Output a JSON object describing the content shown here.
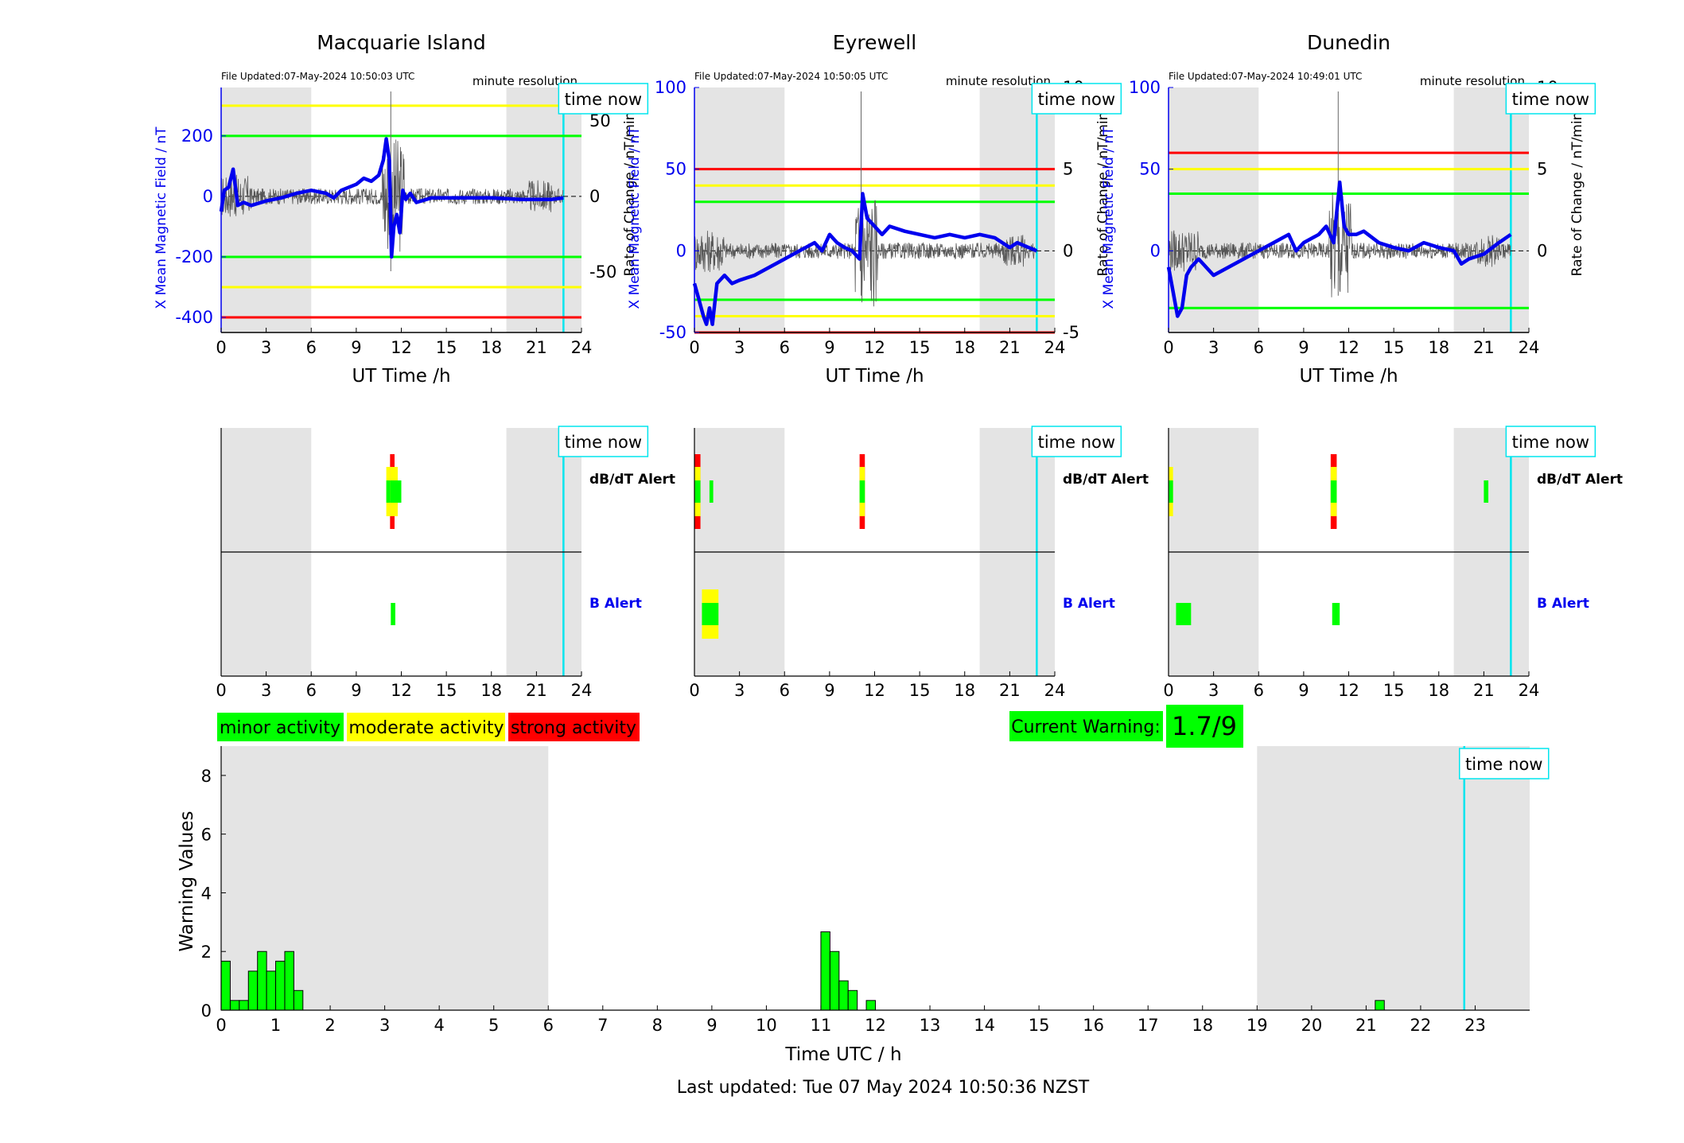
{
  "chart_data": [
    {
      "type": "line",
      "title": "Macquarie Island",
      "file_updated": "File Updated:07-May-2024 10:50:03 UTC",
      "resolution": "minute resolution",
      "time_now_label": "time now",
      "time_now_h": 22.8,
      "xlabel": "UT Time /h",
      "ylabel_left": "X Mean Magnetic Field / nT",
      "ylabel_right": "Rate of Change / nT/min",
      "xlim": [
        0,
        24
      ],
      "x_ticks": [
        0,
        3,
        6,
        9,
        12,
        15,
        18,
        21,
        24
      ],
      "ylim_left": [
        -450,
        360
      ],
      "ylim_right": [
        -90,
        72
      ],
      "y_ticks_left": [
        -400,
        -200,
        0,
        200
      ],
      "y_ticks_right": [
        -50,
        0,
        50
      ],
      "night_shading_h": [
        [
          0,
          6
        ],
        [
          19,
          24
        ]
      ],
      "threshold_lines": [
        {
          "value": 300,
          "color": "#ffff00"
        },
        {
          "value": 200,
          "color": "#00ff00"
        },
        {
          "value": -200,
          "color": "#00ff00"
        },
        {
          "value": -300,
          "color": "#ffff00"
        },
        {
          "value": -400,
          "color": "#ff0000"
        }
      ],
      "series": [
        {
          "values": [
            [
              0,
              -50
            ],
            [
              0.2,
              20
            ],
            [
              0.5,
              30
            ],
            [
              0.8,
              90
            ],
            [
              1.1,
              -30
            ],
            [
              1.5,
              -20
            ],
            [
              2,
              -30
            ],
            [
              3,
              -15
            ],
            [
              4,
              -5
            ],
            [
              5,
              10
            ],
            [
              6,
              20
            ],
            [
              7,
              10
            ],
            [
              7.5,
              -5
            ],
            [
              8,
              20
            ],
            [
              9,
              40
            ],
            [
              9.5,
              60
            ],
            [
              10,
              50
            ],
            [
              10.5,
              70
            ],
            [
              10.8,
              120
            ],
            [
              11,
              190
            ],
            [
              11.2,
              120
            ],
            [
              11.35,
              -200
            ],
            [
              11.5,
              -100
            ],
            [
              11.7,
              -60
            ],
            [
              11.9,
              -120
            ],
            [
              12.1,
              20
            ],
            [
              12.3,
              -10
            ],
            [
              12.6,
              10
            ],
            [
              13,
              -20
            ],
            [
              14,
              -5
            ],
            [
              16,
              -5
            ],
            [
              18,
              -5
            ],
            [
              20,
              -10
            ],
            [
              22,
              -10
            ],
            [
              22.8,
              -5
            ]
          ]
        }
      ]
    },
    {
      "type": "line",
      "title": "Eyrewell",
      "file_updated": "File Updated:07-May-2024 10:50:05 UTC",
      "resolution": "minute resolution",
      "time_now_label": "time now",
      "time_now_h": 22.8,
      "xlabel": "UT Time /h",
      "ylabel_left": "X Mean Magnetic Field / nT",
      "ylabel_right": "Rate of Change / nT/min",
      "xlim": [
        0,
        24
      ],
      "x_ticks": [
        0,
        3,
        6,
        9,
        12,
        15,
        18,
        21,
        24
      ],
      "ylim_left": [
        -50,
        100
      ],
      "ylim_right": [
        -5,
        10
      ],
      "y_ticks_left": [
        -50,
        0,
        50,
        100
      ],
      "y_ticks_right": [
        -5,
        0,
        5,
        10
      ],
      "night_shading_h": [
        [
          0,
          6
        ],
        [
          19,
          24
        ]
      ],
      "threshold_lines": [
        {
          "value": 50,
          "color": "#ff0000"
        },
        {
          "value": 40,
          "color": "#ffff00"
        },
        {
          "value": 30,
          "color": "#00ff00"
        },
        {
          "value": -30,
          "color": "#00ff00"
        },
        {
          "value": -40,
          "color": "#ffff00"
        },
        {
          "value": -50,
          "color": "#ff0000"
        }
      ],
      "series": [
        {
          "values": [
            [
              0,
              -20
            ],
            [
              0.3,
              -30
            ],
            [
              0.6,
              -40
            ],
            [
              0.8,
              -45
            ],
            [
              1,
              -35
            ],
            [
              1.2,
              -45
            ],
            [
              1.5,
              -20
            ],
            [
              2,
              -15
            ],
            [
              2.5,
              -20
            ],
            [
              3,
              -18
            ],
            [
              4,
              -15
            ],
            [
              5,
              -10
            ],
            [
              6,
              -5
            ],
            [
              7,
              0
            ],
            [
              8,
              5
            ],
            [
              8.5,
              0
            ],
            [
              9,
              10
            ],
            [
              9.5,
              5
            ],
            [
              10,
              2
            ],
            [
              10.5,
              0
            ],
            [
              11,
              -5
            ],
            [
              11.2,
              35
            ],
            [
              11.5,
              20
            ],
            [
              12,
              15
            ],
            [
              12.5,
              10
            ],
            [
              13,
              15
            ],
            [
              14,
              12
            ],
            [
              15,
              10
            ],
            [
              16,
              8
            ],
            [
              17,
              10
            ],
            [
              18,
              8
            ],
            [
              19,
              10
            ],
            [
              20,
              8
            ],
            [
              21,
              2
            ],
            [
              21.5,
              5
            ],
            [
              22,
              3
            ],
            [
              22.8,
              0
            ]
          ]
        }
      ]
    },
    {
      "type": "line",
      "title": "Dunedin",
      "file_updated": "File Updated:07-May-2024 10:49:01 UTC",
      "resolution": "minute resolution",
      "time_now_label": "time now",
      "time_now_h": 22.8,
      "xlabel": "UT Time /h",
      "ylabel_left": "X Mean Magnetic Field / nT",
      "ylabel_right": "Rate of Change / nT/min",
      "xlim": [
        0,
        24
      ],
      "x_ticks": [
        0,
        3,
        6,
        9,
        12,
        15,
        18,
        21,
        24
      ],
      "ylim_left": [
        -50,
        100
      ],
      "ylim_right": [
        -5,
        10
      ],
      "y_ticks_left": [
        0,
        50,
        100
      ],
      "y_ticks_right": [
        0,
        5,
        10
      ],
      "night_shading_h": [
        [
          0,
          6
        ],
        [
          19,
          24
        ]
      ],
      "threshold_lines": [
        {
          "value": 60,
          "color": "#ff0000"
        },
        {
          "value": 50,
          "color": "#ffff00"
        },
        {
          "value": 35,
          "color": "#00ff00"
        },
        {
          "value": -35,
          "color": "#00ff00"
        }
      ],
      "series": [
        {
          "values": [
            [
              0,
              -10
            ],
            [
              0.3,
              -25
            ],
            [
              0.6,
              -40
            ],
            [
              0.9,
              -35
            ],
            [
              1.2,
              -15
            ],
            [
              1.5,
              -10
            ],
            [
              2,
              -5
            ],
            [
              3,
              -15
            ],
            [
              4,
              -10
            ],
            [
              5,
              -5
            ],
            [
              6,
              0
            ],
            [
              7,
              5
            ],
            [
              8,
              10
            ],
            [
              8.5,
              0
            ],
            [
              9,
              5
            ],
            [
              10,
              10
            ],
            [
              10.5,
              15
            ],
            [
              11,
              5
            ],
            [
              11.4,
              42
            ],
            [
              11.7,
              15
            ],
            [
              12,
              10
            ],
            [
              12.5,
              10
            ],
            [
              13,
              12
            ],
            [
              14,
              5
            ],
            [
              15,
              2
            ],
            [
              16,
              0
            ],
            [
              17,
              5
            ],
            [
              18,
              2
            ],
            [
              19,
              0
            ],
            [
              19.5,
              -8
            ],
            [
              20,
              -5
            ],
            [
              21,
              -2
            ],
            [
              22,
              5
            ],
            [
              22.8,
              10
            ]
          ]
        }
      ]
    },
    {
      "type": "heatmap",
      "panel": "Macquarie Island alerts",
      "rows": [
        "dB/dT Alert",
        "B Alert"
      ],
      "xlim": [
        0,
        24
      ],
      "x_ticks": [
        0,
        3,
        6,
        9,
        12,
        15,
        18,
        21,
        24
      ],
      "night_shading_h": [
        [
          0,
          6
        ],
        [
          19,
          24
        ]
      ],
      "time_now_label": "time now",
      "time_now_h": 22.8,
      "alerts": [
        {
          "row": "dB/dT Alert",
          "start": 11.25,
          "end": 11.55,
          "level": 3
        },
        {
          "row": "dB/dT Alert",
          "start": 11.0,
          "end": 11.25,
          "level": 2
        },
        {
          "row": "dB/dT Alert",
          "start": 11.55,
          "end": 11.75,
          "level": 2
        },
        {
          "row": "dB/dT Alert",
          "start": 11.75,
          "end": 12.0,
          "level": 1
        },
        {
          "row": "B Alert",
          "start": 11.3,
          "end": 11.6,
          "level": 1
        }
      ]
    },
    {
      "type": "heatmap",
      "panel": "Eyrewell alerts",
      "rows": [
        "dB/dT Alert",
        "B Alert"
      ],
      "xlim": [
        0,
        24
      ],
      "x_ticks": [
        0,
        3,
        6,
        9,
        12,
        15,
        18,
        21,
        24
      ],
      "night_shading_h": [
        [
          0,
          6
        ],
        [
          19,
          24
        ]
      ],
      "time_now_label": "time now",
      "time_now_h": 22.8,
      "alerts": [
        {
          "row": "dB/dT Alert",
          "start": 0.0,
          "end": 0.4,
          "level": 3
        },
        {
          "row": "dB/dT Alert",
          "start": 1.0,
          "end": 1.25,
          "level": 1
        },
        {
          "row": "dB/dT Alert",
          "start": 11.0,
          "end": 11.35,
          "level": 3
        },
        {
          "row": "B Alert",
          "start": 0.5,
          "end": 1.6,
          "level": 2
        }
      ]
    },
    {
      "type": "heatmap",
      "panel": "Dunedin alerts",
      "rows": [
        "dB/dT Alert",
        "B Alert"
      ],
      "xlim": [
        0,
        24
      ],
      "x_ticks": [
        0,
        3,
        6,
        9,
        12,
        15,
        18,
        21,
        24
      ],
      "night_shading_h": [
        [
          0,
          6
        ],
        [
          19,
          24
        ]
      ],
      "time_now_label": "time now",
      "time_now_h": 22.8,
      "alerts": [
        {
          "row": "dB/dT Alert",
          "start": 0.0,
          "end": 0.3,
          "level": 2
        },
        {
          "row": "dB/dT Alert",
          "start": 10.8,
          "end": 11.2,
          "level": 3
        },
        {
          "row": "dB/dT Alert",
          "start": 21.0,
          "end": 21.3,
          "level": 1
        },
        {
          "row": "B Alert",
          "start": 0.5,
          "end": 1.5,
          "level": 1
        },
        {
          "row": "B Alert",
          "start": 10.9,
          "end": 11.4,
          "level": 1
        }
      ]
    },
    {
      "type": "bar",
      "xlabel": "Time UTC / h",
      "ylabel": "Warning Values",
      "xlim": [
        0,
        24
      ],
      "x_ticks": [
        0,
        1,
        2,
        3,
        4,
        5,
        6,
        7,
        8,
        9,
        10,
        11,
        12,
        13,
        14,
        15,
        16,
        17,
        18,
        19,
        20,
        21,
        22,
        23
      ],
      "ylim": [
        0,
        9
      ],
      "y_ticks": [
        0,
        2,
        4,
        6,
        8
      ],
      "bar_width_h": 0.1667,
      "night_shading_h": [
        [
          0,
          6
        ],
        [
          19,
          24
        ]
      ],
      "time_now_label": "time now",
      "time_now_h": 22.8,
      "bars": [
        {
          "x": 0.0,
          "y": 1.67
        },
        {
          "x": 0.167,
          "y": 0.33
        },
        {
          "x": 0.333,
          "y": 0.33
        },
        {
          "x": 0.5,
          "y": 1.33
        },
        {
          "x": 0.667,
          "y": 2.0
        },
        {
          "x": 0.833,
          "y": 1.33
        },
        {
          "x": 1.0,
          "y": 1.67
        },
        {
          "x": 1.167,
          "y": 2.0
        },
        {
          "x": 1.333,
          "y": 0.67
        },
        {
          "x": 11.0,
          "y": 2.67
        },
        {
          "x": 11.167,
          "y": 2.0
        },
        {
          "x": 11.333,
          "y": 1.0
        },
        {
          "x": 11.5,
          "y": 0.67
        },
        {
          "x": 11.833,
          "y": 0.33
        },
        {
          "x": 21.167,
          "y": 0.33
        }
      ]
    }
  ],
  "legend": {
    "minor": "minor activity",
    "moderate": "moderate activity",
    "strong": "strong activity"
  },
  "current_warning": {
    "label": "Current Warning:",
    "value": "1.7/9"
  },
  "footer": "Last updated: Tue 07 May 2024 10:50:36 NZST",
  "colors": {
    "minor": "#00ff00",
    "moderate": "#ffff00",
    "strong": "#ff0000",
    "now_line": "#00e5ee",
    "mean_field": "#0000ee",
    "night": "#e4e4e4"
  }
}
